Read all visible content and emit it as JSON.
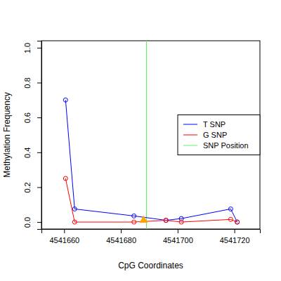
{
  "chart_data": {
    "type": "line",
    "x_label": "CpG Coordinates",
    "y_label": "Methylation Frequency",
    "x": [
      4541660.5,
      4541663.7,
      4541684.6,
      4541695.9,
      4541701.3,
      4541718.7,
      4541721
    ],
    "series": [
      {
        "name": "T SNP",
        "color": "#0000ff",
        "marker": "circle",
        "values": [
          0.7,
          0.075,
          0.035,
          0.01,
          0.02,
          0.075,
          0.0
        ]
      },
      {
        "name": "G SNP",
        "color": "#ff0000",
        "marker": "circle",
        "values": [
          0.25,
          0.0,
          0.0,
          0.01,
          0.0,
          0.015,
          0.0
        ]
      }
    ],
    "vlines": [
      {
        "name": "SNP Position",
        "x": 4541689,
        "color": "#66ee66"
      }
    ],
    "markers": [
      {
        "x": 4541688,
        "y": 0.01,
        "color": "#ffa500",
        "marker": "triangle"
      }
    ],
    "xlim": [
      4541652,
      4541729
    ],
    "ylim": [
      -0.04,
      1.04
    ],
    "xticks": [
      4541660,
      4541680,
      4541700,
      4541720
    ],
    "yticks": [
      {
        "value": 0,
        "label": "0.0"
      },
      0.2,
      0.4,
      0.6,
      0.8,
      {
        "value": 1,
        "label": "1.0"
      }
    ],
    "legend": "right"
  }
}
